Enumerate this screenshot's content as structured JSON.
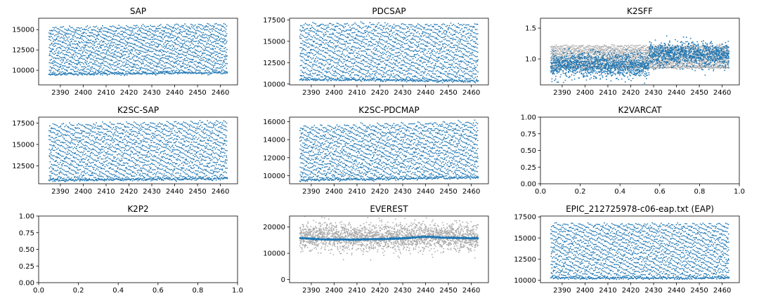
{
  "chart_data": [
    {
      "type": "scatter",
      "title": "SAP",
      "xlim": [
        2380.5,
        2467.5
      ],
      "ylim": [
        8200,
        16400
      ],
      "xticks": [
        2390,
        2400,
        2410,
        2420,
        2430,
        2440,
        2450,
        2460
      ],
      "yticks": [
        10000,
        12500,
        15000
      ],
      "ytick_labels": [
        "10000",
        "12500",
        "15000"
      ],
      "series": [
        {
          "color": "#1f77b4",
          "model": {
            "kind": "sawtooth",
            "x_start": 2385,
            "x_end": 2463,
            "baseline": [
              9500,
              9700
            ],
            "amplitude": [
              5800,
              6100
            ],
            "period": 0.3,
            "noise": 80
          }
        }
      ]
    },
    {
      "type": "scatter",
      "title": "PDCSAP",
      "xlim": [
        2380.5,
        2467.5
      ],
      "ylim": [
        9900,
        17700
      ],
      "xticks": [
        2390,
        2400,
        2410,
        2420,
        2430,
        2440,
        2450,
        2460
      ],
      "yticks": [
        10000,
        12500,
        15000,
        17500
      ],
      "ytick_labels": [
        "10000",
        "12500",
        "15000",
        "17500"
      ],
      "series": [
        {
          "color": "#1f77b4",
          "model": {
            "kind": "sawtooth",
            "x_start": 2385,
            "x_end": 2463,
            "baseline": [
              10550,
              10350
            ],
            "amplitude": [
              6600,
              6700
            ],
            "period": 0.3,
            "noise": 80
          }
        }
      ]
    },
    {
      "type": "scatter",
      "title": "K2SFF",
      "xlim": [
        2380.5,
        2467.5
      ],
      "ylim": [
        0.58,
        1.66
      ],
      "xticks": [
        2390,
        2400,
        2410,
        2420,
        2430,
        2440,
        2450,
        2460
      ],
      "yticks": [
        1.0,
        1.5
      ],
      "ytick_labels": [
        "1.0",
        "1.5"
      ],
      "series": [
        {
          "color": "#aaaaaa",
          "model": {
            "kind": "sawtooth",
            "x_start": 2385,
            "x_end": 2463,
            "baseline": [
              0.86,
              0.86
            ],
            "amplitude": [
              0.36,
              0.36
            ],
            "period": 0.3,
            "noise": 0.01
          }
        },
        {
          "color": "#1f77b4",
          "model": {
            "kind": "noisy-step",
            "x_start": 2385,
            "x_end": 2463,
            "step_x": 2428,
            "levels": [
              0.9,
              1.07
            ],
            "noise": 0.1
          }
        }
      ]
    },
    {
      "type": "scatter",
      "title": "K2SC-SAP",
      "xlim": [
        2380.5,
        2467.5
      ],
      "ylim": [
        10400,
        18200
      ],
      "xticks": [
        2390,
        2400,
        2410,
        2420,
        2430,
        2440,
        2450,
        2460
      ],
      "yticks": [
        12500,
        15000,
        17500
      ],
      "ytick_labels": [
        "12500",
        "15000",
        "17500"
      ],
      "series": [
        {
          "color": "#1f77b4",
          "model": {
            "kind": "sawtooth",
            "x_start": 2385,
            "x_end": 2463,
            "baseline": [
              10800,
              11000
            ],
            "amplitude": [
              6600,
              6800
            ],
            "period": 0.3,
            "noise": 80
          }
        }
      ]
    },
    {
      "type": "scatter",
      "title": "K2SC-PDCMAP",
      "xlim": [
        2380.5,
        2467.5
      ],
      "ylim": [
        9100,
        16500
      ],
      "xticks": [
        2390,
        2400,
        2410,
        2420,
        2430,
        2440,
        2450,
        2460
      ],
      "yticks": [
        10000,
        12000,
        14000,
        16000
      ],
      "ytick_labels": [
        "10000",
        "12000",
        "14000",
        "16000"
      ],
      "series": [
        {
          "color": "#1f77b4",
          "model": {
            "kind": "sawtooth",
            "x_start": 2385,
            "x_end": 2463,
            "baseline": [
              9500,
              9800
            ],
            "amplitude": [
              6000,
              6300
            ],
            "period": 0.3,
            "noise": 80
          }
        }
      ]
    },
    {
      "type": "scatter",
      "title": "K2VARCAT",
      "xlim": [
        0,
        1
      ],
      "ylim": [
        0,
        1
      ],
      "xticks": [
        0.0,
        0.2,
        0.4,
        0.6,
        0.8,
        1.0
      ],
      "xtick_labels": [
        "0.0",
        "0.2",
        "0.4",
        "0.6",
        "0.8",
        "1.0"
      ],
      "yticks": [
        0.0,
        0.25,
        0.5,
        0.75,
        1.0
      ],
      "ytick_labels": [
        "0.00",
        "0.25",
        "0.50",
        "0.75",
        "1.00"
      ],
      "series": []
    },
    {
      "type": "scatter",
      "title": "K2P2",
      "xlim": [
        0,
        1
      ],
      "ylim": [
        0,
        1
      ],
      "xticks": [
        0.0,
        0.2,
        0.4,
        0.6,
        0.8,
        1.0
      ],
      "xtick_labels": [
        "0.0",
        "0.2",
        "0.4",
        "0.6",
        "0.8",
        "1.0"
      ],
      "yticks": [
        0.0,
        0.25,
        0.5,
        0.75,
        1.0
      ],
      "ytick_labels": [
        "0.00",
        "0.25",
        "0.50",
        "0.75",
        "1.00"
      ],
      "series": []
    },
    {
      "type": "scatter",
      "title": "EVEREST",
      "xlim": [
        2380.5,
        2467.5
      ],
      "ylim": [
        -1200,
        24200
      ],
      "xticks": [
        2390,
        2400,
        2410,
        2420,
        2430,
        2440,
        2450,
        2460
      ],
      "yticks": [
        0,
        10000,
        20000
      ],
      "ytick_labels": [
        "0",
        "10000",
        "20000"
      ],
      "series": [
        {
          "color": "#aaaaaa",
          "model": {
            "kind": "noisy-flat",
            "x_start": 2385,
            "x_end": 2463,
            "level": 16200,
            "noise": 2600
          }
        },
        {
          "color": "#1f77b4",
          "model": {
            "kind": "smooth",
            "x_start": 2385,
            "x_end": 2463,
            "points": [
              [
                2385,
                15800
              ],
              [
                2395,
                15300
              ],
              [
                2410,
                15200
              ],
              [
                2428,
                15600
              ],
              [
                2440,
                16300
              ],
              [
                2450,
                15900
              ],
              [
                2463,
                15700
              ]
            ],
            "noise": 120
          }
        }
      ]
    },
    {
      "type": "scatter",
      "title": "EPIC_212725978-c06-eap.txt (EAP)",
      "xlim": [
        2380.5,
        2467.5
      ],
      "ylim": [
        9700,
        17600
      ],
      "xticks": [
        2390,
        2400,
        2410,
        2420,
        2430,
        2440,
        2450,
        2460
      ],
      "yticks": [
        10000,
        12500,
        15000,
        17500
      ],
      "ytick_labels": [
        "10000",
        "12500",
        "15000",
        "17500"
      ],
      "series": [
        {
          "color": "#1f77b4",
          "model": {
            "kind": "sawtooth",
            "x_start": 2385,
            "x_end": 2463,
            "baseline": [
              10250,
              10250
            ],
            "amplitude": [
              6500,
              6500
            ],
            "period": 0.3,
            "noise": 80
          }
        }
      ]
    }
  ]
}
